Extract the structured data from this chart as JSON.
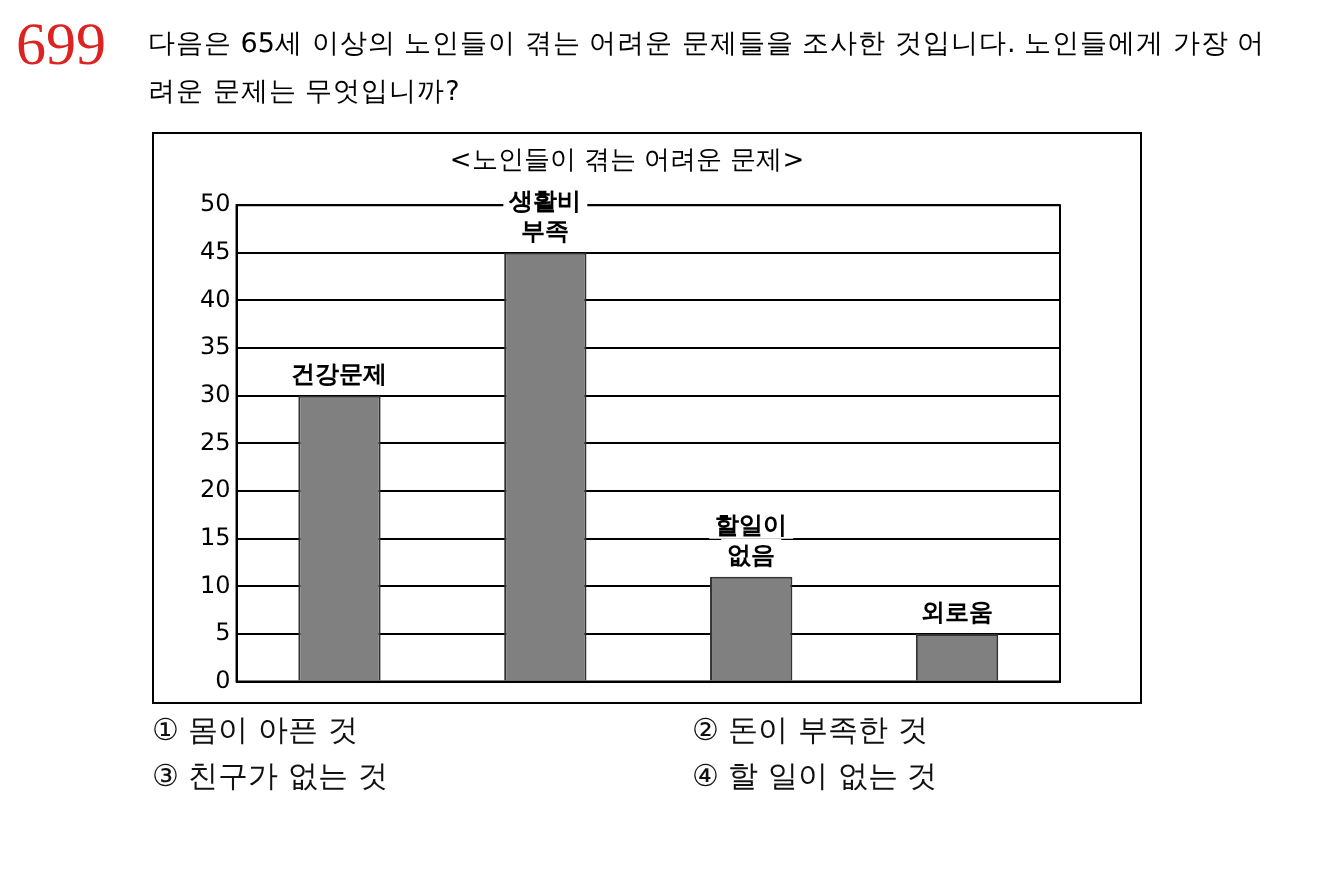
{
  "chart_data": {
    "type": "bar",
    "title": "<노인들이 겪는 어려운 문제>",
    "categories": [
      "건강문제",
      "생활비 부족",
      "할일이 없음",
      "외로움"
    ],
    "values": [
      30,
      45,
      11,
      5
    ],
    "color": "#808080",
    "ylim": [
      0,
      50
    ],
    "yticks": [
      0,
      5,
      10,
      15,
      20,
      25,
      30,
      35,
      40,
      45,
      50
    ],
    "grid": "y",
    "legend": false,
    "annotations": [
      "699",
      "다음은 65세 이상의 노인들이 겪는 어려운 문제들을 조사한 것입니다. 노인들에게 가장 어려운 문제는 무엇입니까?",
      "① 몸이 아픈 것",
      "② 돈이 부족한 것",
      "③ 친구가 없는 것",
      "④ 할 일이 없는 것"
    ]
  }
}
